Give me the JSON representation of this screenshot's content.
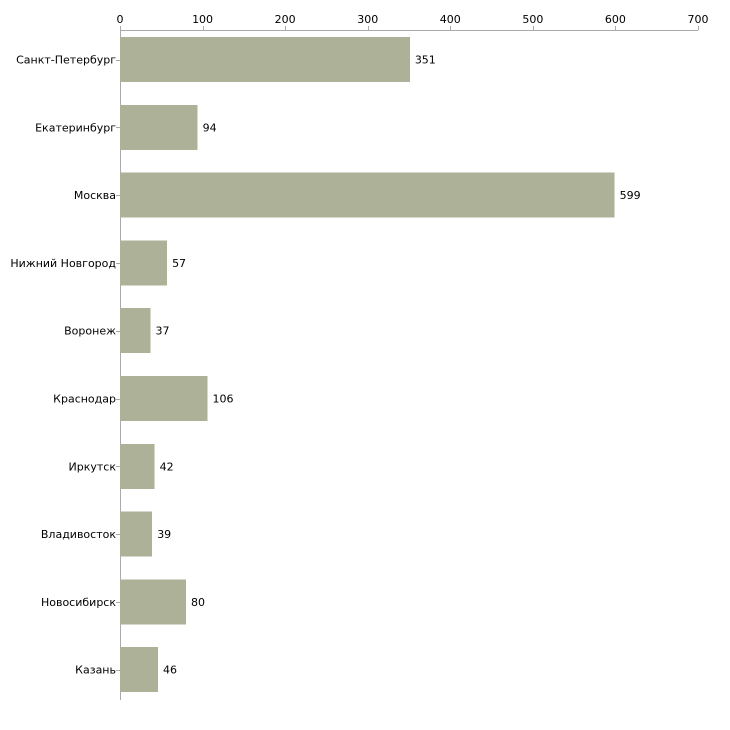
{
  "chart_data": {
    "type": "bar",
    "orientation": "horizontal",
    "title": "",
    "xlabel": "",
    "ylabel": "",
    "categories": [
      "Санкт-Петербург",
      "Екатеринбург",
      "Москва",
      "Нижний Новгород",
      "Воронеж",
      "Краснодар",
      "Иркутск",
      "Владивосток",
      "Новосибирск",
      "Казань"
    ],
    "values": [
      351,
      94,
      599,
      57,
      37,
      106,
      42,
      39,
      80,
      46
    ],
    "xlim": [
      0,
      700
    ],
    "x_ticks": [
      0,
      100,
      200,
      300,
      400,
      500,
      600,
      700
    ],
    "x_axis_position": "top",
    "grid": false,
    "bar_color": "#adb197",
    "axis_color": "#aaaaaa",
    "data_labels": true
  }
}
